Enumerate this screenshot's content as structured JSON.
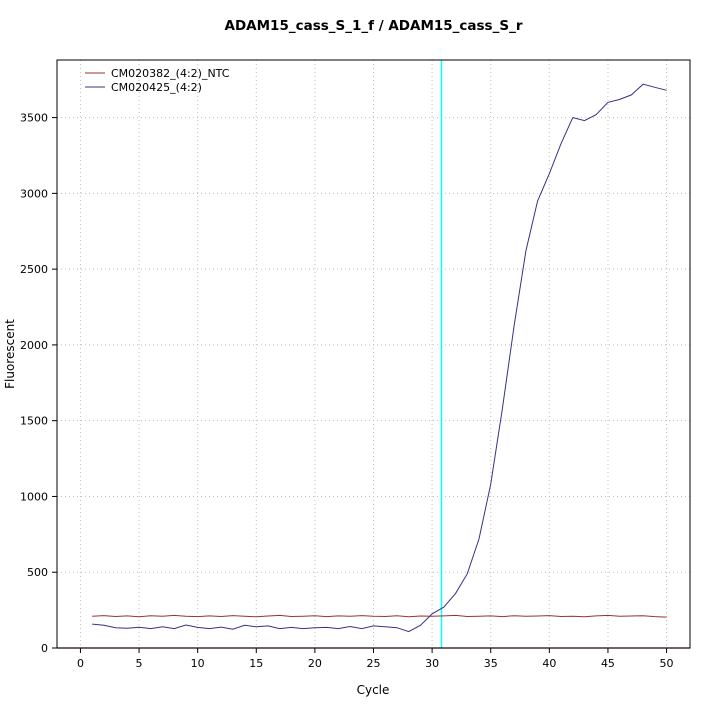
{
  "chart_data": {
    "type": "line",
    "title": "ADAM15_cass_S_1_f / ADAM15_cass_S_r",
    "xlabel": "Cycle",
    "ylabel": "Fluorescent",
    "xlim": [
      -2,
      52
    ],
    "ylim": [
      0,
      3880
    ],
    "x_ticks": [
      0,
      5,
      10,
      15,
      20,
      25,
      30,
      35,
      40,
      45,
      50
    ],
    "y_ticks": [
      0,
      500,
      1000,
      1500,
      2000,
      2500,
      3000,
      3500
    ],
    "grid": true,
    "grid_style": "dotted",
    "grid_color": "#bfbfbf",
    "legend_position": "top-left",
    "threshold_line": {
      "x": 30.8,
      "color": "#00ffff"
    },
    "baseline": {
      "y": 0,
      "color": "#8b2020"
    },
    "x": [
      1,
      2,
      3,
      4,
      5,
      6,
      7,
      8,
      9,
      10,
      11,
      12,
      13,
      14,
      15,
      16,
      17,
      18,
      19,
      20,
      21,
      22,
      23,
      24,
      25,
      26,
      27,
      28,
      29,
      30,
      31,
      32,
      33,
      34,
      35,
      36,
      37,
      38,
      39,
      40,
      41,
      42,
      43,
      44,
      45,
      46,
      47,
      48,
      49,
      50
    ],
    "series": [
      {
        "name": "CM020382_(4:2)_NTC",
        "color": "#993333",
        "values": [
          210,
          214,
          208,
          212,
          206,
          213,
          209,
          215,
          210,
          207,
          212,
          208,
          214,
          210,
          206,
          211,
          215,
          208,
          210,
          213,
          207,
          212,
          209,
          214,
          210,
          208,
          213,
          206,
          211,
          209,
          212,
          215,
          208,
          210,
          212,
          207,
          213,
          209,
          211,
          214,
          208,
          210,
          206,
          212,
          215,
          209,
          211,
          213,
          207,
          204
        ]
      },
      {
        "name": "CM020425_(4:2)",
        "color": "#333388",
        "values": [
          158,
          150,
          133,
          130,
          137,
          128,
          140,
          128,
          152,
          136,
          128,
          138,
          124,
          150,
          140,
          146,
          128,
          136,
          128,
          134,
          136,
          128,
          142,
          128,
          146,
          140,
          134,
          108,
          150,
          225,
          270,
          360,
          490,
          720,
          1080,
          1580,
          2130,
          2620,
          2950,
          3130,
          3330,
          3500,
          3480,
          3520,
          3600,
          3620,
          3650,
          3720,
          3700,
          3680
        ]
      }
    ]
  }
}
